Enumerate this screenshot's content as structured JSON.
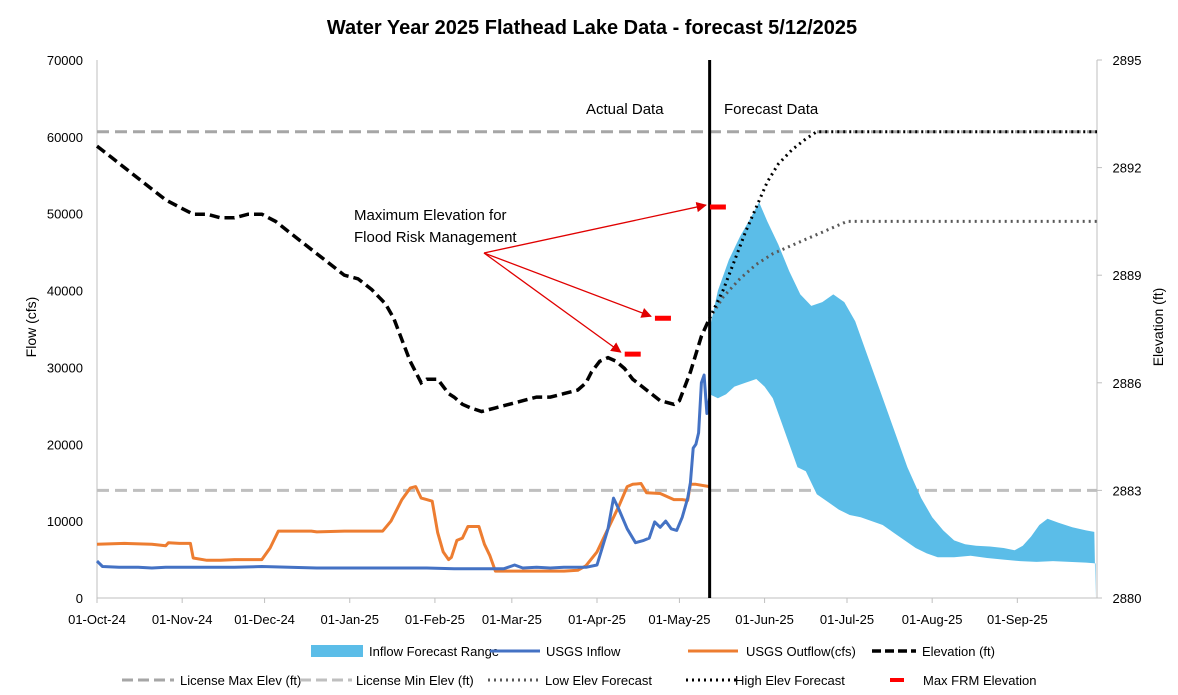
{
  "chart_data": {
    "type": "line",
    "title": "Water Year 2025 Flathead Lake Data - forecast 5/12/2025",
    "ylabel": "Flow (cfs)",
    "y2label": "Elevation (ft)",
    "ylim": [
      0,
      70000
    ],
    "yticks": [
      "0",
      "10000",
      "20000",
      "30000",
      "40000",
      "50000",
      "60000",
      "70000"
    ],
    "y2lim": [
      2880,
      2895
    ],
    "y2ticks": [
      "2880",
      "2883",
      "2886",
      "2889",
      "2892",
      "2895"
    ],
    "xlim_day": [
      0,
      364
    ],
    "xticks": [
      {
        "day": 0,
        "label": "01-Oct-24"
      },
      {
        "day": 31,
        "label": "01-Nov-24"
      },
      {
        "day": 61,
        "label": "01-Dec-24"
      },
      {
        "day": 92,
        "label": "01-Jan-25"
      },
      {
        "day": 123,
        "label": "01-Feb-25"
      },
      {
        "day": 151,
        "label": "01-Mar-25"
      },
      {
        "day": 182,
        "label": "01-Apr-25"
      },
      {
        "day": 212,
        "label": "01-May-25"
      },
      {
        "day": 243,
        "label": "01-Jun-25"
      },
      {
        "day": 273,
        "label": "01-Jul-25"
      },
      {
        "day": 304,
        "label": "01-Aug-25"
      },
      {
        "day": 335,
        "label": "01-Sep-25"
      }
    ],
    "forecast_day": 223,
    "region_labels": {
      "actual": "Actual Data",
      "forecast": "Forecast Data"
    },
    "annotation": {
      "line1": "Maximum Elevation for",
      "line2": "Flood Risk Management"
    },
    "colors": {
      "inflow_range": "#5bbde8",
      "inflow": "#4472c4",
      "outflow": "#ed7d31",
      "elevation": "#000000",
      "license_max": "#a6a6a6",
      "license_min": "#bfbfbf",
      "low_fc": "#595959",
      "high_fc": "#000000",
      "frm": "#ff0000",
      "arrow": "#e00000"
    },
    "series": {
      "inflow_forecast_range": {
        "name": "Inflow Forecast Range",
        "upper": [
          [
            223,
            35000
          ],
          [
            226,
            40000
          ],
          [
            230,
            44000
          ],
          [
            234,
            47000
          ],
          [
            238,
            49500
          ],
          [
            241,
            51500
          ],
          [
            244,
            49000
          ],
          [
            248,
            46000
          ],
          [
            252,
            42500
          ],
          [
            256,
            39500
          ],
          [
            260,
            38000
          ],
          [
            264,
            38500
          ],
          [
            268,
            39500
          ],
          [
            272,
            38500
          ],
          [
            276,
            36000
          ],
          [
            280,
            32000
          ],
          [
            285,
            27000
          ],
          [
            290,
            22000
          ],
          [
            295,
            17000
          ],
          [
            300,
            13000
          ],
          [
            304,
            10500
          ],
          [
            308,
            8800
          ],
          [
            312,
            7500
          ],
          [
            316,
            7000
          ],
          [
            320,
            6800
          ],
          [
            325,
            6700
          ],
          [
            330,
            6500
          ],
          [
            334,
            6200
          ],
          [
            337,
            6800
          ],
          [
            340,
            8000
          ],
          [
            343,
            9500
          ],
          [
            346,
            10300
          ],
          [
            350,
            9800
          ],
          [
            355,
            9200
          ],
          [
            360,
            8800
          ],
          [
            363,
            8600
          ],
          [
            363.5,
            0
          ]
        ],
        "lower": [
          [
            223,
            26500
          ],
          [
            226,
            26000
          ],
          [
            229,
            26500
          ],
          [
            232,
            27500
          ],
          [
            236,
            28000
          ],
          [
            240,
            28500
          ],
          [
            243,
            27500
          ],
          [
            246,
            26000
          ],
          [
            249,
            23000
          ],
          [
            252,
            20000
          ],
          [
            255,
            17000
          ],
          [
            258,
            16500
          ],
          [
            262,
            13500
          ],
          [
            266,
            12500
          ],
          [
            270,
            11500
          ],
          [
            274,
            10800
          ],
          [
            278,
            10500
          ],
          [
            282,
            10000
          ],
          [
            286,
            9500
          ],
          [
            290,
            8500
          ],
          [
            294,
            7500
          ],
          [
            298,
            6500
          ],
          [
            302,
            5800
          ],
          [
            306,
            5300
          ],
          [
            312,
            5300
          ],
          [
            318,
            5500
          ],
          [
            324,
            5200
          ],
          [
            330,
            5000
          ],
          [
            336,
            4800
          ],
          [
            342,
            4700
          ],
          [
            348,
            4800
          ],
          [
            354,
            4700
          ],
          [
            360,
            4600
          ],
          [
            363.5,
            4500
          ]
        ]
      },
      "usgs_inflow": {
        "name": "USGS Inflow",
        "points": [
          [
            0,
            4800
          ],
          [
            2,
            4100
          ],
          [
            8,
            4000
          ],
          [
            15,
            4000
          ],
          [
            20,
            3900
          ],
          [
            25,
            4000
          ],
          [
            31,
            4000
          ],
          [
            40,
            4000
          ],
          [
            50,
            4000
          ],
          [
            60,
            4100
          ],
          [
            70,
            4000
          ],
          [
            80,
            3900
          ],
          [
            92,
            3900
          ],
          [
            100,
            3900
          ],
          [
            110,
            3900
          ],
          [
            120,
            3900
          ],
          [
            130,
            3800
          ],
          [
            140,
            3800
          ],
          [
            148,
            3800
          ],
          [
            152,
            4300
          ],
          [
            155,
            3900
          ],
          [
            160,
            4000
          ],
          [
            165,
            3900
          ],
          [
            170,
            4000
          ],
          [
            178,
            4000
          ],
          [
            182,
            4300
          ],
          [
            186,
            9000
          ],
          [
            188,
            13000
          ],
          [
            190,
            11500
          ],
          [
            193,
            9000
          ],
          [
            196,
            7200
          ],
          [
            199,
            7500
          ],
          [
            201,
            7800
          ],
          [
            203,
            9900
          ],
          [
            205,
            9200
          ],
          [
            207,
            10000
          ],
          [
            209,
            9000
          ],
          [
            211,
            8800
          ],
          [
            213,
            10500
          ],
          [
            215,
            13000
          ],
          [
            216,
            15000
          ],
          [
            217,
            19500
          ],
          [
            218,
            20000
          ],
          [
            219,
            21500
          ],
          [
            220,
            28000
          ],
          [
            221,
            29000
          ],
          [
            222,
            24000
          ],
          [
            223,
            26000
          ]
        ]
      },
      "usgs_outflow": {
        "name": "USGS Outflow(cfs)",
        "points": [
          [
            0,
            7000
          ],
          [
            10,
            7100
          ],
          [
            20,
            7000
          ],
          [
            25,
            6800
          ],
          [
            26,
            7200
          ],
          [
            30,
            7100
          ],
          [
            34,
            7100
          ],
          [
            35,
            5200
          ],
          [
            40,
            4900
          ],
          [
            45,
            4900
          ],
          [
            50,
            5000
          ],
          [
            60,
            5000
          ],
          [
            63,
            6500
          ],
          [
            66,
            8700
          ],
          [
            70,
            8700
          ],
          [
            78,
            8700
          ],
          [
            80,
            8600
          ],
          [
            90,
            8700
          ],
          [
            100,
            8700
          ],
          [
            104,
            8700
          ],
          [
            107,
            10000
          ],
          [
            111,
            12800
          ],
          [
            114,
            14300
          ],
          [
            116,
            14500
          ],
          [
            118,
            13000
          ],
          [
            120,
            12800
          ],
          [
            122,
            12600
          ],
          [
            124,
            8500
          ],
          [
            126,
            6000
          ],
          [
            128,
            5000
          ],
          [
            129,
            5300
          ],
          [
            131,
            7500
          ],
          [
            133,
            7800
          ],
          [
            135,
            9300
          ],
          [
            139,
            9300
          ],
          [
            141,
            7000
          ],
          [
            143,
            5500
          ],
          [
            145,
            3500
          ],
          [
            150,
            3500
          ],
          [
            160,
            3500
          ],
          [
            170,
            3500
          ],
          [
            175,
            3600
          ],
          [
            178,
            4200
          ],
          [
            182,
            6000
          ],
          [
            186,
            9000
          ],
          [
            190,
            12000
          ],
          [
            193,
            14500
          ],
          [
            195,
            14800
          ],
          [
            198,
            14900
          ],
          [
            200,
            13700
          ],
          [
            205,
            13600
          ],
          [
            210,
            12800
          ],
          [
            213,
            12800
          ],
          [
            215,
            12700
          ],
          [
            216,
            14800
          ],
          [
            218,
            14800
          ],
          [
            223,
            14500
          ]
        ]
      },
      "elevation": {
        "name": "Elevation (ft)",
        "points": [
          [
            0,
            2892.6
          ],
          [
            5,
            2892.3
          ],
          [
            10,
            2892.0
          ],
          [
            15,
            2891.7
          ],
          [
            20,
            2891.4
          ],
          [
            25,
            2891.1
          ],
          [
            30,
            2890.9
          ],
          [
            35,
            2890.7
          ],
          [
            40,
            2890.7
          ],
          [
            45,
            2890.6
          ],
          [
            50,
            2890.6
          ],
          [
            55,
            2890.7
          ],
          [
            60,
            2890.7
          ],
          [
            65,
            2890.5
          ],
          [
            70,
            2890.2
          ],
          [
            75,
            2889.9
          ],
          [
            80,
            2889.6
          ],
          [
            85,
            2889.3
          ],
          [
            90,
            2889.0
          ],
          [
            95,
            2888.9
          ],
          [
            100,
            2888.6
          ],
          [
            105,
            2888.2
          ],
          [
            108,
            2887.8
          ],
          [
            111,
            2887.2
          ],
          [
            114,
            2886.6
          ],
          [
            118,
            2886.0
          ],
          [
            120,
            2886.1
          ],
          [
            124,
            2886.1
          ],
          [
            128,
            2885.7
          ],
          [
            130,
            2885.6
          ],
          [
            133,
            2885.4
          ],
          [
            136,
            2885.3
          ],
          [
            140,
            2885.2
          ],
          [
            145,
            2885.3
          ],
          [
            150,
            2885.4
          ],
          [
            155,
            2885.5
          ],
          [
            160,
            2885.6
          ],
          [
            165,
            2885.6
          ],
          [
            170,
            2885.7
          ],
          [
            175,
            2885.8
          ],
          [
            178,
            2886.0
          ],
          [
            180,
            2886.3
          ],
          [
            183,
            2886.6
          ],
          [
            186,
            2886.7
          ],
          [
            189,
            2886.6
          ],
          [
            192,
            2886.4
          ],
          [
            195,
            2886.1
          ],
          [
            200,
            2885.8
          ],
          [
            205,
            2885.5
          ],
          [
            210,
            2885.4
          ],
          [
            212,
            2885.5
          ],
          [
            214,
            2885.9
          ],
          [
            216,
            2886.3
          ],
          [
            218,
            2886.8
          ],
          [
            220,
            2887.3
          ],
          [
            223,
            2887.8
          ]
        ]
      },
      "license_max": {
        "name": "License Max Elev (ft)",
        "value": 2893.0
      },
      "license_min": {
        "name": "License Min Elev (ft)",
        "value": 2883.0
      },
      "low_elev_forecast": {
        "name": "Low Elev Forecast",
        "points": [
          [
            223,
            2887.8
          ],
          [
            228,
            2888.4
          ],
          [
            234,
            2888.9
          ],
          [
            240,
            2889.3
          ],
          [
            246,
            2889.6
          ],
          [
            252,
            2889.8
          ],
          [
            258,
            2890.0
          ],
          [
            264,
            2890.2
          ],
          [
            270,
            2890.4
          ],
          [
            273,
            2890.5
          ],
          [
            300,
            2890.5
          ],
          [
            330,
            2890.5
          ],
          [
            364,
            2890.5
          ]
        ]
      },
      "high_elev_forecast": {
        "name": "High Elev Forecast",
        "points": [
          [
            223,
            2887.8
          ],
          [
            228,
            2888.6
          ],
          [
            232,
            2889.4
          ],
          [
            236,
            2890.2
          ],
          [
            240,
            2890.9
          ],
          [
            244,
            2891.6
          ],
          [
            248,
            2892.1
          ],
          [
            253,
            2892.5
          ],
          [
            258,
            2892.8
          ],
          [
            262,
            2893.0
          ],
          [
            300,
            2893.0
          ],
          [
            330,
            2893.0
          ],
          [
            364,
            2893.0
          ]
        ]
      },
      "max_frm": {
        "name": "Max FRM Elevation",
        "points": [
          [
            195,
            2886.8
          ],
          [
            206,
            2887.8
          ],
          [
            226,
            2890.9
          ]
        ]
      }
    }
  }
}
